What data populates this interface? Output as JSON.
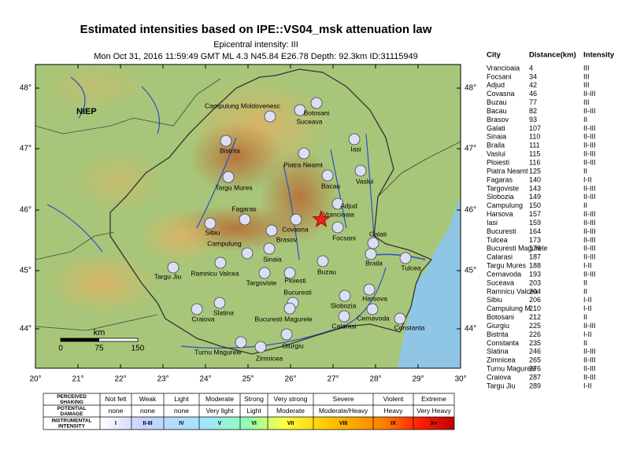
{
  "title": "Estimated intensities based on IPE::VS04_msk attenuation law",
  "subtitle": "Epicentral intensity: III",
  "event_info": "Mon Oct 31, 2016 11:59:49 GMT ML 4.3 N45.84 E26.78 Depth: 92.3km ID:31115949",
  "map": {
    "label": "NIEP",
    "lat_labels": [
      "48°",
      "47°",
      "46°",
      "45°",
      "44°"
    ],
    "lon_labels": [
      "20°",
      "21°",
      "22°",
      "23°",
      "24°",
      "25°",
      "26°",
      "27°",
      "28°",
      "29°",
      "30°"
    ],
    "scale": {
      "unit": "km",
      "labels": [
        "0",
        "75",
        "150"
      ]
    },
    "epicenter_label": "Vrancioaia",
    "cities": [
      "Campulung Moldovenesc",
      "Botosani",
      "Suceava",
      "Iasi",
      "Bistrita",
      "Piatra Neamt",
      "Vaslui",
      "Bacau",
      "Targu Mures",
      "Adjud",
      "Fagaras",
      "Covasna",
      "Sibiu",
      "Brasov",
      "Focsani",
      "Galati",
      "Campulung",
      "Sinaia",
      "Braila",
      "Tulcea",
      "Targu Jiu",
      "Ramnicu Valcea",
      "Targoviste",
      "Ploiesti",
      "Buzau",
      "Bucuresti",
      "Bucuresti Magurele",
      "Slobozia",
      "Harsova",
      "Slatina",
      "Craiova",
      "Calarasi",
      "Cernavoda",
      "Constanta",
      "Turnu Magurele",
      "Giurgiu",
      "Zimnicea"
    ]
  },
  "city_table": {
    "headers": [
      "City",
      "Distance(km)",
      "Intensity"
    ],
    "rows": [
      [
        "Vrancioaia",
        "4",
        "III"
      ],
      [
        "Focsani",
        "34",
        "III"
      ],
      [
        "Adjud",
        "42",
        "III"
      ],
      [
        "Covasna",
        "46",
        "II-III"
      ],
      [
        "Buzau",
        "77",
        "III"
      ],
      [
        "Bacau",
        "82",
        "II-III"
      ],
      [
        "Brasov",
        "93",
        "II"
      ],
      [
        "Galati",
        "107",
        "II-III"
      ],
      [
        "Sinaia",
        "110",
        "II-III"
      ],
      [
        "Braila",
        "111",
        "II-III"
      ],
      [
        "Vaslui",
        "115",
        "II-III"
      ],
      [
        "Ploiesti",
        "116",
        "II-III"
      ],
      [
        "Piatra Neamt",
        "125",
        "II"
      ],
      [
        "Fagaras",
        "140",
        "I-II"
      ],
      [
        "Targoviste",
        "143",
        "II-III"
      ],
      [
        "Slobozia",
        "149",
        "II-III"
      ],
      [
        "Campulung",
        "150",
        "II"
      ],
      [
        "Harsova",
        "157",
        "II-III"
      ],
      [
        "Iasi",
        "159",
        "II-III"
      ],
      [
        "Bucuresti",
        "164",
        "II-III"
      ],
      [
        "Tulcea",
        "173",
        "II-III"
      ],
      [
        "Bucuresti Magurele",
        "176",
        "II-III"
      ],
      [
        "Calarasi",
        "187",
        "II-III"
      ],
      [
        "Targu Mures",
        "188",
        "I-II"
      ],
      [
        "Cernavoda",
        "193",
        "II-III"
      ],
      [
        "Suceava",
        "203",
        "II"
      ],
      [
        "Ramnicu Valcea",
        "204",
        "II"
      ],
      [
        "Sibiu",
        "206",
        "I-II"
      ],
      [
        "Campulung M.",
        "210",
        "I-II"
      ],
      [
        "Botosani",
        "212",
        "II"
      ],
      [
        "Giurgiu",
        "225",
        "II-III"
      ],
      [
        "Bistrita",
        "226",
        "I-II"
      ],
      [
        "Constanta",
        "235",
        "II"
      ],
      [
        "Slatina",
        "246",
        "II-III"
      ],
      [
        "Zimnicea",
        "265",
        "II-III"
      ],
      [
        "Turnu Magurele",
        "276",
        "II-III"
      ],
      [
        "Craiova",
        "287",
        "II-III"
      ],
      [
        "Targu Jiu",
        "289",
        "I-II"
      ]
    ]
  },
  "legend": {
    "rows": [
      {
        "label": [
          "PERCEIVED",
          "SHAKING"
        ],
        "cells": [
          "Not felt",
          "Weak",
          "Light",
          "Moderate",
          "Strong",
          "Very strong",
          "Severe",
          "Violent",
          "Extreme"
        ]
      },
      {
        "label": [
          "POTENTIAL",
          "DAMAGE"
        ],
        "cells": [
          "none",
          "none",
          "none",
          "Very light",
          "Light",
          "Moderate",
          "Moderate/Heavy",
          "Heavy",
          "Very Heavy"
        ]
      },
      {
        "label": [
          "INSTRUMENTAL",
          "INTENSITY"
        ],
        "cells": [
          "I",
          "II-III",
          "IV",
          "V",
          "VI",
          "VII",
          "VIII",
          "IX",
          "X+"
        ]
      }
    ]
  }
}
